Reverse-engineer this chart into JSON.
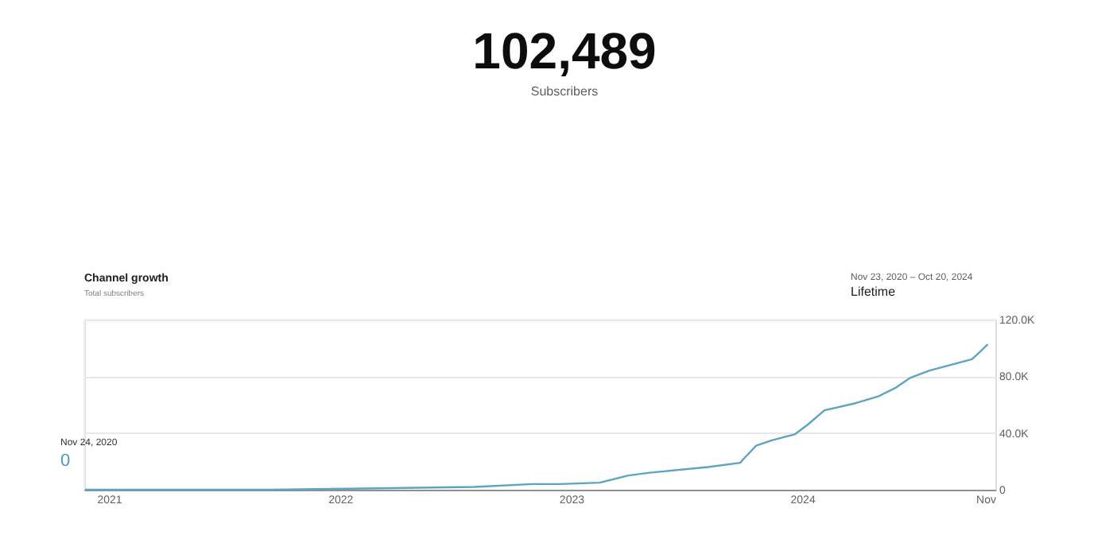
{
  "chart_data": {
    "type": "line",
    "title": "Channel growth",
    "subtitle": "Total subscribers",
    "x": [
      "2020-11-23",
      "2021-06-01",
      "2021-09-15",
      "2022-03-01",
      "2022-08-01",
      "2022-11-01",
      "2022-12-15",
      "2023-02-15",
      "2023-04-01",
      "2023-05-05",
      "2023-08-05",
      "2023-09-25",
      "2023-10-01",
      "2023-10-20",
      "2023-11-15",
      "2023-12-20",
      "2024-01-10",
      "2024-02-05",
      "2024-03-25",
      "2024-05-01",
      "2024-05-28",
      "2024-06-20",
      "2024-07-20",
      "2024-09-25",
      "2024-10-07",
      "2024-10-20"
    ],
    "series": [
      {
        "color": "#5ba4c4",
        "values": [
          0,
          0,
          0,
          1000,
          2000,
          4000,
          4000,
          5000,
          10000,
          12000,
          16000,
          19000,
          22000,
          31000,
          35000,
          39000,
          46000,
          56000,
          61000,
          66000,
          72000,
          79000,
          84000,
          92000,
          97000,
          102489
        ]
      }
    ],
    "xlim": [
      "2020-11-23",
      "2024-11-01"
    ],
    "xticks": [
      {
        "value": "2021-01-01",
        "label": "2021"
      },
      {
        "value": "2022-01-01",
        "label": "2022"
      },
      {
        "value": "2023-01-01",
        "label": "2023"
      },
      {
        "value": "2024-01-01",
        "label": "2024"
      },
      {
        "value": "2024-11-01",
        "label": "Nov"
      }
    ],
    "ylim": [
      0,
      120000
    ],
    "yticks": [
      0,
      {
        "value": 40000,
        "label": "40.0K"
      },
      {
        "value": 80000,
        "label": "80.0K"
      },
      {
        "value": 120000,
        "label": "120.0K"
      }
    ],
    "grid": "y",
    "annotations": [
      "102,489",
      "Subscribers",
      "Nov 23, 2020 – Oct 20, 2024",
      "Lifetime",
      "Nov 24, 2020",
      "0"
    ]
  }
}
